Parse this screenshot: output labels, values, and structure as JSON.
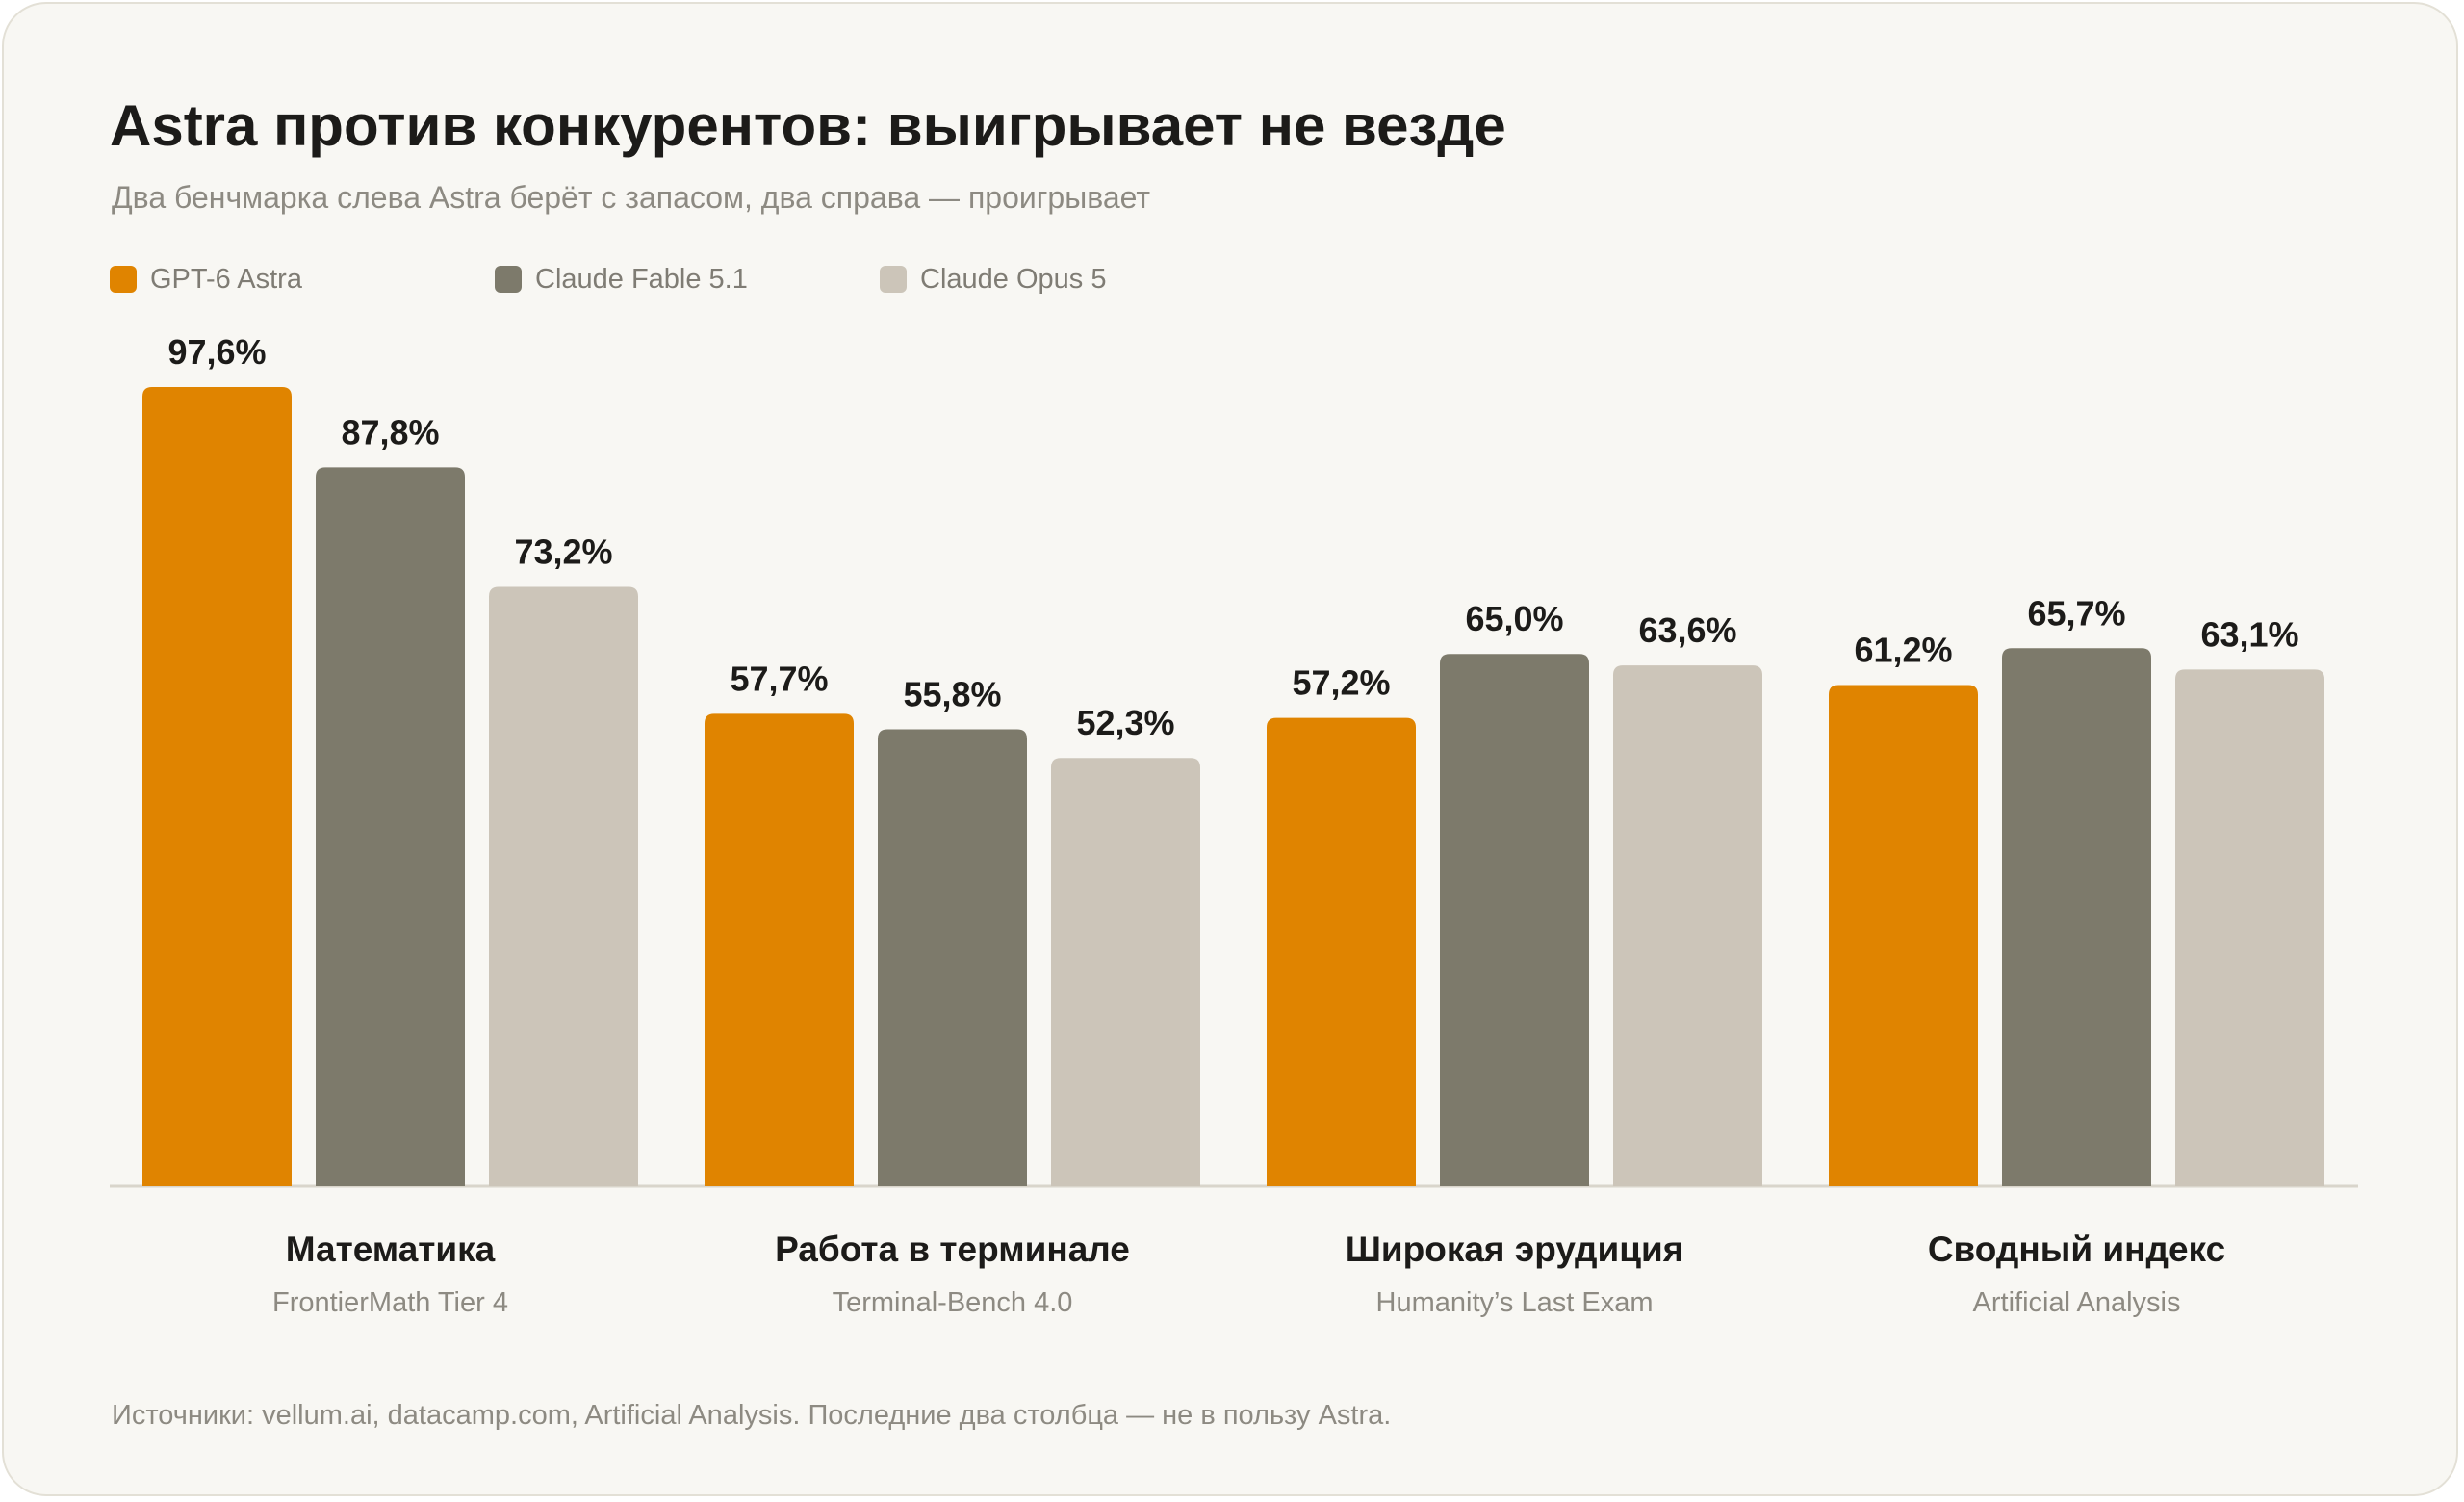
{
  "header": {
    "title": "Astra против конкурентов: выигрывает не везде",
    "subtitle": "Два бенчмарка слева Astra берёт с запасом, два справа — проигрывает"
  },
  "legend": [
    {
      "label": "GPT-6 Astra",
      "color": "#e08400"
    },
    {
      "label": "Claude Fable 5.1",
      "color": "#7d7a6b"
    },
    {
      "label": "Claude Opus 5",
      "color": "#ccc5b9"
    }
  ],
  "chart_data": {
    "type": "bar",
    "title": "Astra против конкурентов: выигрывает не везде",
    "subtitle": "Два бенчмарка слева Astra берёт с запасом, два справа — проигрывает",
    "categories": [
      "Математика",
      "Работа в терминале",
      "Широкая эрудиция",
      "Сводный индекс"
    ],
    "category_sublabels": [
      "FrontierMath Tier 4",
      "Terminal-Bench 4.0",
      "Humanity’s Last Exam",
      "Artificial Analysis"
    ],
    "series": [
      {
        "name": "GPT-6 Astra",
        "color": "#e08400",
        "values": [
          97.6,
          57.7,
          57.2,
          61.2
        ],
        "labels": [
          "97,6%",
          "57,7%",
          "57,2%",
          "61,2%"
        ]
      },
      {
        "name": "Claude Fable 5.1",
        "color": "#7d7a6b",
        "values": [
          87.8,
          55.8,
          65.0,
          65.7
        ],
        "labels": [
          "87,8%",
          "55,8%",
          "65,0%",
          "65,7%"
        ]
      },
      {
        "name": "Claude Opus 5",
        "color": "#ccc5b9",
        "values": [
          73.2,
          52.3,
          63.6,
          63.1
        ],
        "labels": [
          "73,2%",
          "52,3%",
          "63,6%",
          "63,1%"
        ]
      }
    ],
    "ylim": [
      0,
      100
    ],
    "grid": false,
    "legend_position": "top-left"
  },
  "footnote": "Источники: vellum.ai, datacamp.com, Artificial Analysis. Последние два столбца — не в пользу Astra."
}
